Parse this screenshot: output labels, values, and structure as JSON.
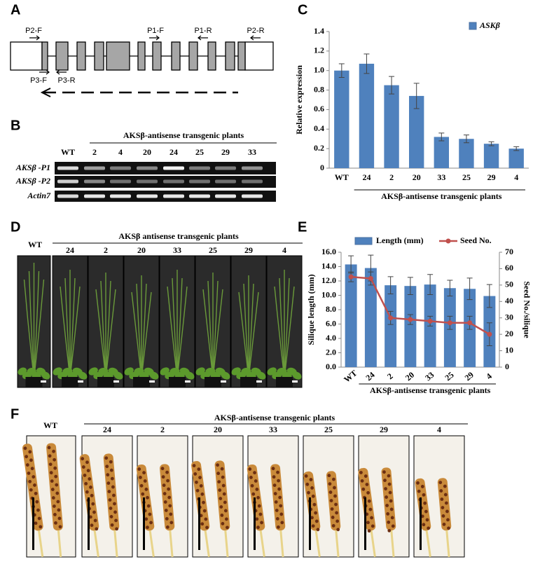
{
  "panel_labels": [
    "A",
    "B",
    "C",
    "D",
    "E",
    "F"
  ],
  "gene_diagram": {
    "primers": [
      "P2-F",
      "P1-F",
      "P1-R",
      "P2-R",
      "P3-F",
      "P3-R"
    ]
  },
  "gel": {
    "header": "AKSβ-antisense transgenic plants",
    "lanes": [
      "WT",
      "2",
      "4",
      "20",
      "24",
      "25",
      "29",
      "33"
    ],
    "rows": [
      "AKSβ -P1",
      "AKSβ -P2",
      "Actin7"
    ]
  },
  "plants": {
    "header": "AKSβ antisense transgenic plants",
    "control": "WT",
    "lines": [
      "24",
      "2",
      "20",
      "33",
      "25",
      "29",
      "4"
    ]
  },
  "siliques": {
    "header": "AKSβ-antisense transgenic plants",
    "control": "WT",
    "lines": [
      "24",
      "2",
      "20",
      "33",
      "25",
      "29",
      "4"
    ]
  },
  "chart_data": [
    {
      "type": "bar",
      "ylabel": "Relative expression",
      "xlabel": "AKSβ-antisense transgenic plants",
      "categories": [
        "WT",
        "24",
        "2",
        "20",
        "33",
        "25",
        "29",
        "4"
      ],
      "series": [
        {
          "name": "ASKβ",
          "color": "#4f81bd",
          "values": [
            1.0,
            1.07,
            0.85,
            0.74,
            0.32,
            0.3,
            0.25,
            0.2
          ],
          "errors": [
            0.07,
            0.1,
            0.09,
            0.13,
            0.04,
            0.04,
            0.02,
            0.02
          ]
        }
      ],
      "ylim": [
        0,
        1.4
      ],
      "yticks": [
        0,
        0.2,
        0.4,
        0.6,
        0.8,
        {
          "value": 1,
          "label": "1.0"
        },
        1.2,
        1.4
      ],
      "legend": "top-right"
    },
    {
      "type": "bar",
      "ylabel": "Silique length (mm)",
      "y2label": "Seed No./silique",
      "xlabel": "AKSβ-antisense transgenic plants",
      "categories": [
        "WT",
        "24",
        "2",
        "20",
        "33",
        "25",
        "29",
        "4"
      ],
      "series": [
        {
          "name": "Length (mm)",
          "color": "#4f81bd",
          "values": [
            14.3,
            13.8,
            11.4,
            11.3,
            11.5,
            11.0,
            10.9,
            9.9
          ],
          "errors": [
            1.2,
            1.8,
            1.2,
            1.2,
            1.4,
            1.1,
            1.5,
            1.6
          ]
        },
        {
          "name": "Seed No.",
          "type": "line",
          "axis": "y2",
          "color": "#c0504d",
          "values": [
            55,
            54,
            30,
            29,
            28,
            27,
            27,
            20
          ],
          "errors": [
            3,
            4,
            4,
            3,
            3,
            4,
            4,
            7
          ]
        }
      ],
      "ylim": [
        0,
        16
      ],
      "yticks": [
        {
          "value": 0,
          "label": "0.0"
        },
        {
          "value": 2,
          "label": "2.0"
        },
        {
          "value": 4,
          "label": "4.0"
        },
        {
          "value": 6,
          "label": "6.0"
        },
        {
          "value": 8,
          "label": "8.0"
        },
        {
          "value": 10,
          "label": "10.0"
        },
        {
          "value": 12,
          "label": "12.0"
        },
        {
          "value": 14,
          "label": "14.0"
        },
        {
          "value": 16,
          "label": "16.0"
        }
      ],
      "y2lim": [
        0,
        70
      ],
      "y2ticks": [
        0,
        10,
        20,
        30,
        40,
        50,
        60,
        70
      ],
      "legend": "top"
    }
  ]
}
